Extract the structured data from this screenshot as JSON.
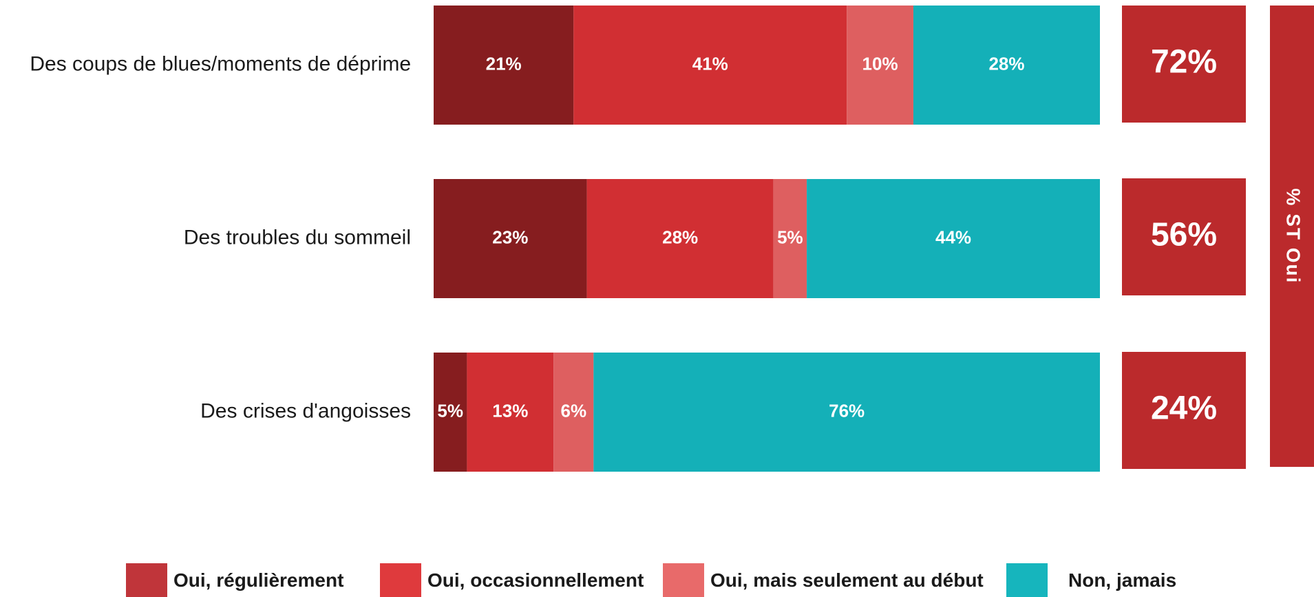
{
  "chart_data": {
    "type": "bar",
    "orientation": "horizontal",
    "stacked": true,
    "categories": [
      "Des coups de blues/moments de déprime",
      "Des troubles du sommeil",
      "Des crises d'angoisses"
    ],
    "series": [
      {
        "name": "Oui, régulièrement",
        "color": "#861d1f",
        "legend_color": "#c0353a",
        "values": [
          21,
          23,
          5
        ]
      },
      {
        "name": "Oui, occasionnellement",
        "color": "#d12f33",
        "legend_color": "#df3a3d",
        "values": [
          41,
          28,
          13
        ]
      },
      {
        "name": "Oui, mais seulement au début",
        "color": "#de5f60",
        "legend_color": "#e86a6a",
        "values": [
          10,
          5,
          6
        ]
      },
      {
        "name": "Non, jamais",
        "color": "#14b0b8",
        "legend_color": "#16b5bd",
        "values": [
          28,
          44,
          76
        ]
      }
    ],
    "value_format": "{v}%",
    "totals": {
      "title": "% ST Oui",
      "values": [
        "72%",
        "56%",
        "24%"
      ],
      "color": "#bb2a2c"
    },
    "legend_position": "bottom",
    "grid": false
  }
}
